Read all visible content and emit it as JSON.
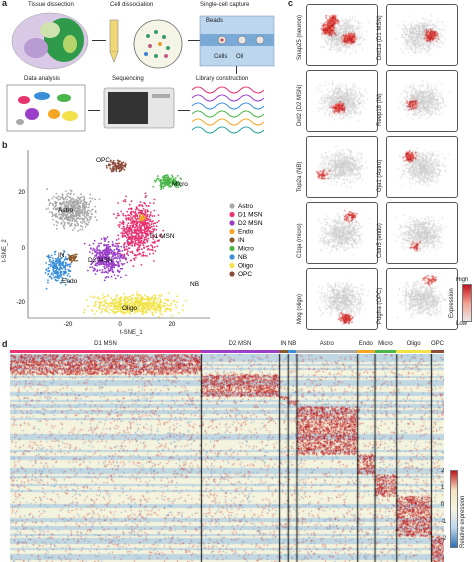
{
  "panel_a": {
    "letter": "a",
    "steps": {
      "dissection": "Tissue dissection",
      "dissociation": "Cell dissociation",
      "capture": "Single-cell capture",
      "beads": "Beads",
      "cells": "Cells",
      "oil": "Oil",
      "library": "Library construction",
      "sequencing": "Sequencing",
      "analysis": "Data analysis"
    }
  },
  "panel_b": {
    "letter": "b",
    "chart_data": {
      "type": "scatter",
      "xlabel": "t-SNE_1",
      "ylabel": "t-SNE_2",
      "xticks": [
        "-20",
        "0",
        "20"
      ],
      "yticks": [
        "20",
        "0",
        "-20"
      ],
      "legend_position": "right",
      "series": [
        {
          "name": "Astro",
          "color": "#a9a9a9"
        },
        {
          "name": "D1 MSN",
          "color": "#e8336f"
        },
        {
          "name": "D2 MSN",
          "color": "#9b3fc9"
        },
        {
          "name": "Endo",
          "color": "#f5a623"
        },
        {
          "name": "IN",
          "color": "#8a5a2b"
        },
        {
          "name": "Micro",
          "color": "#49b649"
        },
        {
          "name": "NB",
          "color": "#3b8fd9"
        },
        {
          "name": "Oligo",
          "color": "#f2e24a"
        },
        {
          "name": "OPC",
          "color": "#8b4a3a"
        }
      ],
      "cluster_labels": [
        "OPC",
        "Micro",
        "Astro",
        "D1 MSN",
        "D2 MSN",
        "IN",
        "Endo",
        "Oligo",
        "NB"
      ]
    }
  },
  "panel_c": {
    "letter": "c",
    "tiles": [
      "Snap25 (neuron)",
      "Drd1a (D1 MSN)",
      "Drd2 (D2 MSN)",
      "Reep18 (IN)",
      "Top2a (NB)",
      "Gja1 (Astro)",
      "C1qa (micro)",
      "Cldn5 (endo)",
      "Mog (oligo)",
      "Pdgfra (OPC)"
    ],
    "colorbar": {
      "title": "Expression",
      "high": "High",
      "low": "Low"
    }
  },
  "panel_d": {
    "letter": "d",
    "groups": [
      {
        "name": "D1 MSN",
        "color": "#e8336f",
        "frac": 0.44
      },
      {
        "name": "D2 MSN",
        "color": "#9b3fc9",
        "frac": 0.18
      },
      {
        "name": "IN",
        "color": "#8a5a2b",
        "frac": 0.02
      },
      {
        "name": "NB",
        "color": "#3b8fd9",
        "frac": 0.02
      },
      {
        "name": "Astro",
        "color": "#a9a9a9",
        "frac": 0.14
      },
      {
        "name": "Endo",
        "color": "#f5a623",
        "frac": 0.04
      },
      {
        "name": "Micro",
        "color": "#49b649",
        "frac": 0.05
      },
      {
        "name": "Oligo",
        "color": "#f2e24a",
        "frac": 0.08
      },
      {
        "name": "OPC",
        "color": "#8b4a3a",
        "frac": 0.03
      }
    ],
    "colorbar": {
      "title": "Relative expression",
      "ticks": [
        "2",
        "1",
        "0",
        "-1",
        "-2"
      ]
    }
  }
}
